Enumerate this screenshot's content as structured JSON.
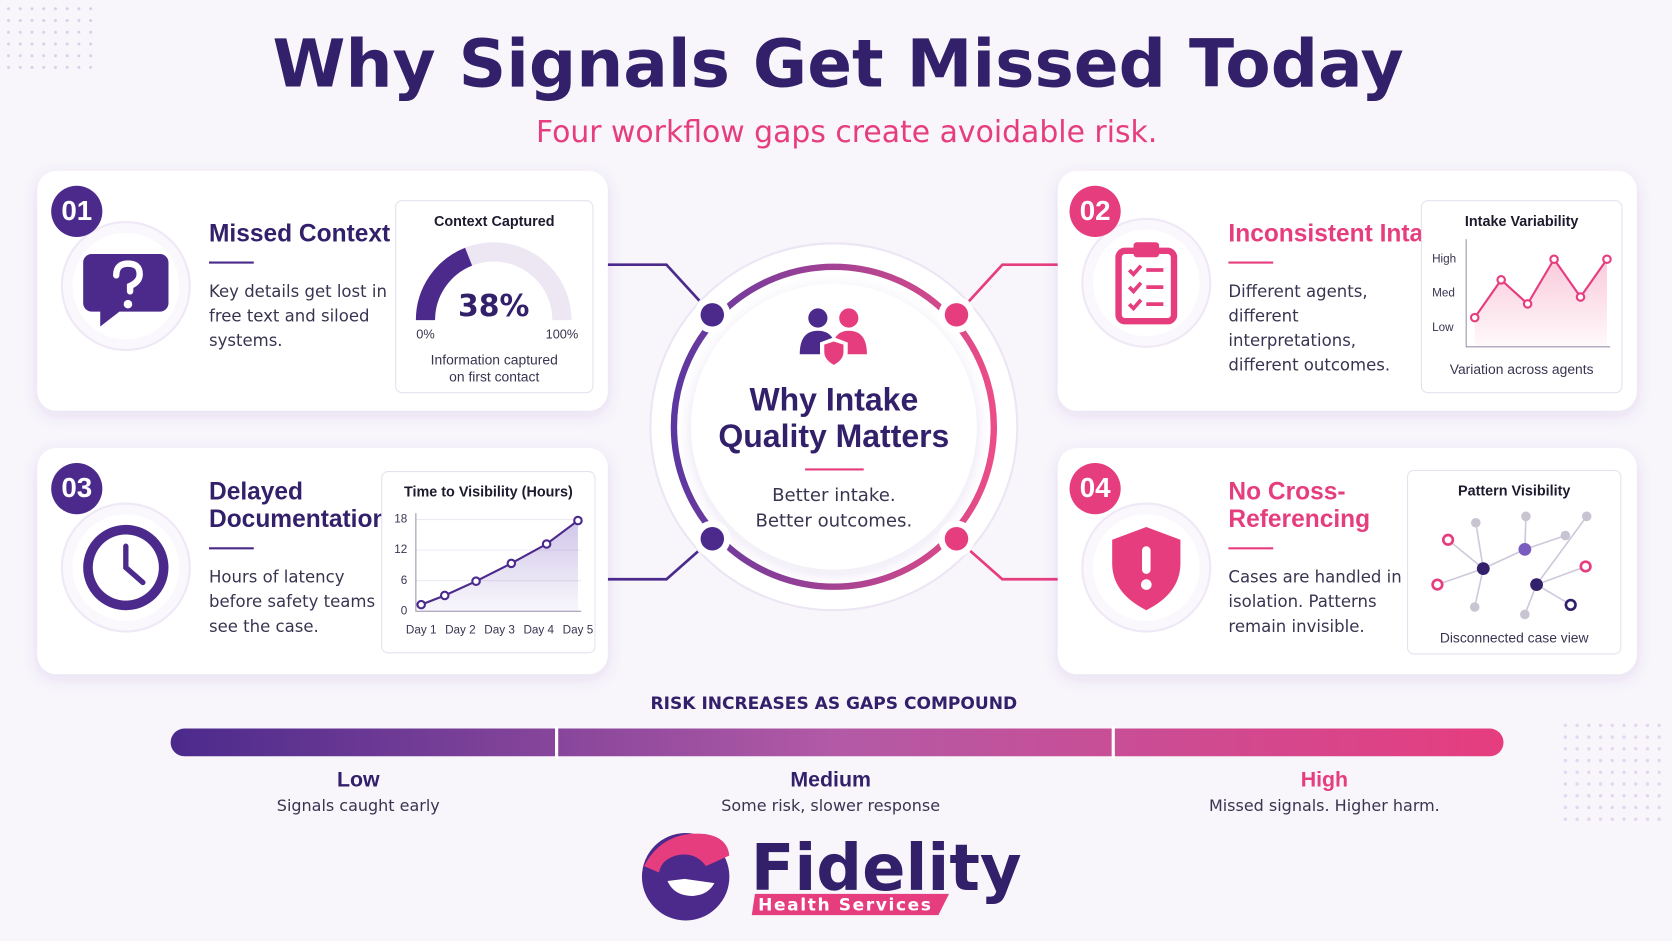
{
  "header": {
    "title": "Why Signals Get Missed Today",
    "subtitle": "Four workflow gaps create avoidable risk."
  },
  "cards": [
    {
      "number": "01",
      "title": [
        "Missed Context"
      ],
      "text": [
        "Key details get lost in",
        "free text and siloed",
        "systems."
      ],
      "chart": {
        "type": "gauge",
        "title": "Context Captured",
        "value": 38,
        "value_label": "38%",
        "lim": [
          0,
          100
        ],
        "ticks": [
          {
            "value": 0,
            "label": "0%"
          },
          {
            "value": 100,
            "label": "100%"
          }
        ],
        "caption": [
          "Information captured",
          "on first contact"
        ]
      }
    },
    {
      "number": "02",
      "title": [
        "Inconsistent Intake"
      ],
      "text": [
        "Different agents,",
        "different",
        "interpretations,",
        "different outcomes."
      ],
      "chart": {
        "type": "line",
        "title": "Intake Variability",
        "values": [
          1.3,
          2.4,
          1.7,
          3.0,
          1.9,
          3.0
        ],
        "ylim": [
          0.45,
          3.4
        ],
        "yticks": [
          {
            "value": 3,
            "label": "High"
          },
          {
            "value": 2,
            "label": "Med"
          },
          {
            "value": 1,
            "label": "Low"
          }
        ],
        "caption": [
          "Variation across agents"
        ]
      }
    },
    {
      "number": "03",
      "title": [
        "Delayed",
        "Documentation"
      ],
      "text": [
        "Hours of latency",
        "before safety teams",
        "see the case."
      ],
      "chart": {
        "type": "line",
        "title": "Time to Visibility (Hours)",
        "x": [
          1,
          1.6,
          2.4,
          3.3,
          4.2,
          5
        ],
        "values": [
          1.3,
          3.1,
          5.9,
          9.4,
          13.2,
          17.8
        ],
        "xlim": [
          1,
          5
        ],
        "xticks": [
          {
            "value": 1,
            "label": "Day 1"
          },
          {
            "value": 2,
            "label": "Day 2"
          },
          {
            "value": 3,
            "label": "Day 3"
          },
          {
            "value": 4,
            "label": "Day 4"
          },
          {
            "value": 5,
            "label": "Day 5"
          }
        ],
        "ylim": [
          0,
          18
        ],
        "yticks": [
          0,
          6,
          12,
          18
        ],
        "grid": true
      }
    },
    {
      "number": "04",
      "title": [
        "No Cross-",
        "Referencing"
      ],
      "text": [
        "Cases are handled in",
        "isolation. Patterns",
        "remain invisible."
      ],
      "chart": {
        "type": "network",
        "title": "Pattern Visibility",
        "caption": [
          "Disconnected case view"
        ]
      }
    }
  ],
  "center": {
    "title": [
      "Why Intake",
      "Quality Matters"
    ],
    "tagline": [
      "Better intake.",
      "Better outcomes."
    ]
  },
  "risk": {
    "label": "RISK INCREASES AS GAPS COMPOUND",
    "levels": [
      {
        "name": "Low",
        "description": "Signals caught early"
      },
      {
        "name": "Medium",
        "description": "Some risk, slower response"
      },
      {
        "name": "High",
        "description": "Missed signals. Higher harm."
      }
    ]
  },
  "logo": {
    "name": "Fidelity",
    "tagline": "Health Services"
  }
}
